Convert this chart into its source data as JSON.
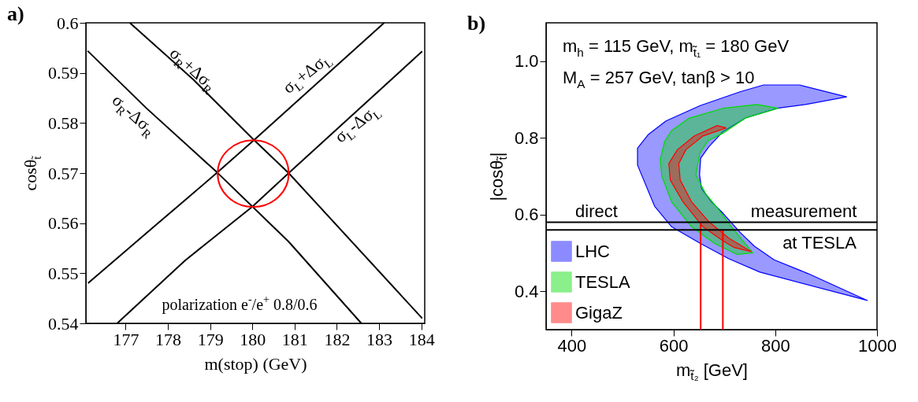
{
  "chart_data": [
    {
      "type": "line",
      "title": "a)",
      "xlabel": "m(stop) (GeV)",
      "ylabel": "cosθ$_{t̃}$",
      "xlim": [
        176.06,
        184.08
      ],
      "ylim": [
        0.54,
        0.6
      ],
      "xticks": [
        177,
        178,
        179,
        180,
        181,
        182,
        183,
        184
      ],
      "yticks": [
        0.54,
        0.55,
        0.56,
        0.57,
        0.58,
        0.59,
        0.6
      ],
      "series": [
        {
          "color": "#000000",
          "x": [
            176.1,
            177.5,
            179.17,
            180.86,
            182.58
          ],
          "values": [
            0.5944,
            0.5829,
            0.5701,
            0.5563,
            0.54
          ]
        },
        {
          "color": "#000000",
          "x": [
            177.1,
            178.6,
            180.04,
            180.86,
            184.02
          ],
          "values": [
            0.6,
            0.5887,
            0.5766,
            0.57,
            0.541
          ]
        },
        {
          "color": "#000000",
          "x": [
            176.11,
            177.7,
            179.17,
            180.04,
            183.12
          ],
          "values": [
            0.548,
            0.5595,
            0.5701,
            0.5766,
            0.6
          ]
        },
        {
          "color": "#000000",
          "x": [
            176.8,
            178.4,
            180.0,
            180.86,
            184.02
          ],
          "values": [
            0.54,
            0.5525,
            0.5633,
            0.57,
            0.5943
          ]
        }
      ],
      "annotations": [
        "σ$_{R}$+Δσ$_{R}$",
        "σ$_{R}$-Δσ$_{R}$",
        "σ$_{L}$+Δσ$_{L}$",
        "σ$_{L}$-Δσ$_{L}$",
        "polarization e$^{-}$/e$^{+}$ 0.8/0.6"
      ]
    },
    {
      "type": "area",
      "title": "b)",
      "xlabel": "m$_{t̃₂}$ [GeV]",
      "ylabel": "|cosθ$_{t̃}$|",
      "xlim": [
        350,
        1000
      ],
      "ylim": [
        0.3,
        1.1
      ],
      "xticks": [
        400,
        600,
        800,
        1000
      ],
      "yticks": [
        0.4,
        0.6,
        0.8,
        {
          "value": 1,
          "label": "1.0"
        }
      ],
      "legend": "bottom left",
      "series": [
        {
          "name": "LHC",
          "color": "#0000ff",
          "x": [
            777.1,
            848.0,
            940.2,
            859.2,
            803.4,
            741.9,
            697.2,
            669.3,
            653.6,
            651.4,
            655.3,
            674.9,
            697.2,
            730.7,
            758.7,
            797.8,
            864.8,
            981.0,
            769.8,
            708.4,
            652.5,
            596.6,
            563.1,
            529.6,
            529.6,
            550.3,
            585.5,
            652.5,
            730.7,
            777.1
          ],
          "values": [
            0.938,
            0.938,
            0.907,
            0.887,
            0.877,
            0.852,
            0.816,
            0.776,
            0.747,
            0.704,
            0.668,
            0.633,
            0.604,
            0.554,
            0.518,
            0.482,
            0.446,
            0.376,
            0.45,
            0.485,
            0.525,
            0.568,
            0.622,
            0.729,
            0.773,
            0.808,
            0.844,
            0.884,
            0.92,
            0.938
          ]
        },
        {
          "name": "TESLA",
          "color": "#00dd00",
          "x": [
            806.1,
            764.2,
            697.2,
            630.2,
            596.6,
            582.7,
            574.3,
            577.1,
            596.6,
            635.8,
            680.4,
            725.1,
            755.9,
            736.3,
            714.0,
            686.0,
            663.7,
            644.1,
            652.5,
            669.3,
            697.2,
            741.9,
            806.1
          ],
          "values": [
            0.877,
            0.887,
            0.877,
            0.851,
            0.819,
            0.79,
            0.744,
            0.701,
            0.633,
            0.568,
            0.525,
            0.496,
            0.5,
            0.532,
            0.568,
            0.618,
            0.654,
            0.704,
            0.762,
            0.794,
            0.812,
            0.852,
            0.877
          ]
        },
        {
          "name": "GigaZ",
          "color": "#ff0000",
          "x": [
            703.9,
            686.0,
            641.3,
            607.8,
            591.1,
            593.9,
            619.0,
            658.1,
            697.2,
            719.6,
            753.1,
            708.4,
            669.3,
            635.8,
            613.4,
            610.6,
            624.6,
            658.1,
            703.9
          ],
          "values": [
            0.826,
            0.832,
            0.805,
            0.769,
            0.733,
            0.69,
            0.633,
            0.568,
            0.532,
            0.514,
            0.503,
            0.539,
            0.582,
            0.633,
            0.69,
            0.733,
            0.769,
            0.805,
            0.826
          ]
        },
        {
          "type": "line",
          "color": "#ff0000",
          "x": [
            653.6,
            653.6
          ],
          "values": [
            0.3,
            0.58
          ]
        },
        {
          "type": "line",
          "color": "#ff0000",
          "x": [
            697.2,
            697.2
          ],
          "values": [
            0.3,
            0.56
          ]
        }
      ],
      "ref_lines": [
        {
          "axis": "y",
          "value": 0.58,
          "color": "#000000"
        },
        {
          "axis": "y",
          "value": 0.56,
          "color": "#000000"
        }
      ],
      "annotations": [
        "m$_{h}$ = 115 GeV, m$_{t̃₁}$ = 180 GeV",
        "M$_{A}$ = 257 GeV, tanβ > 10",
        "direct",
        "measurement",
        "at TESLA"
      ]
    }
  ]
}
